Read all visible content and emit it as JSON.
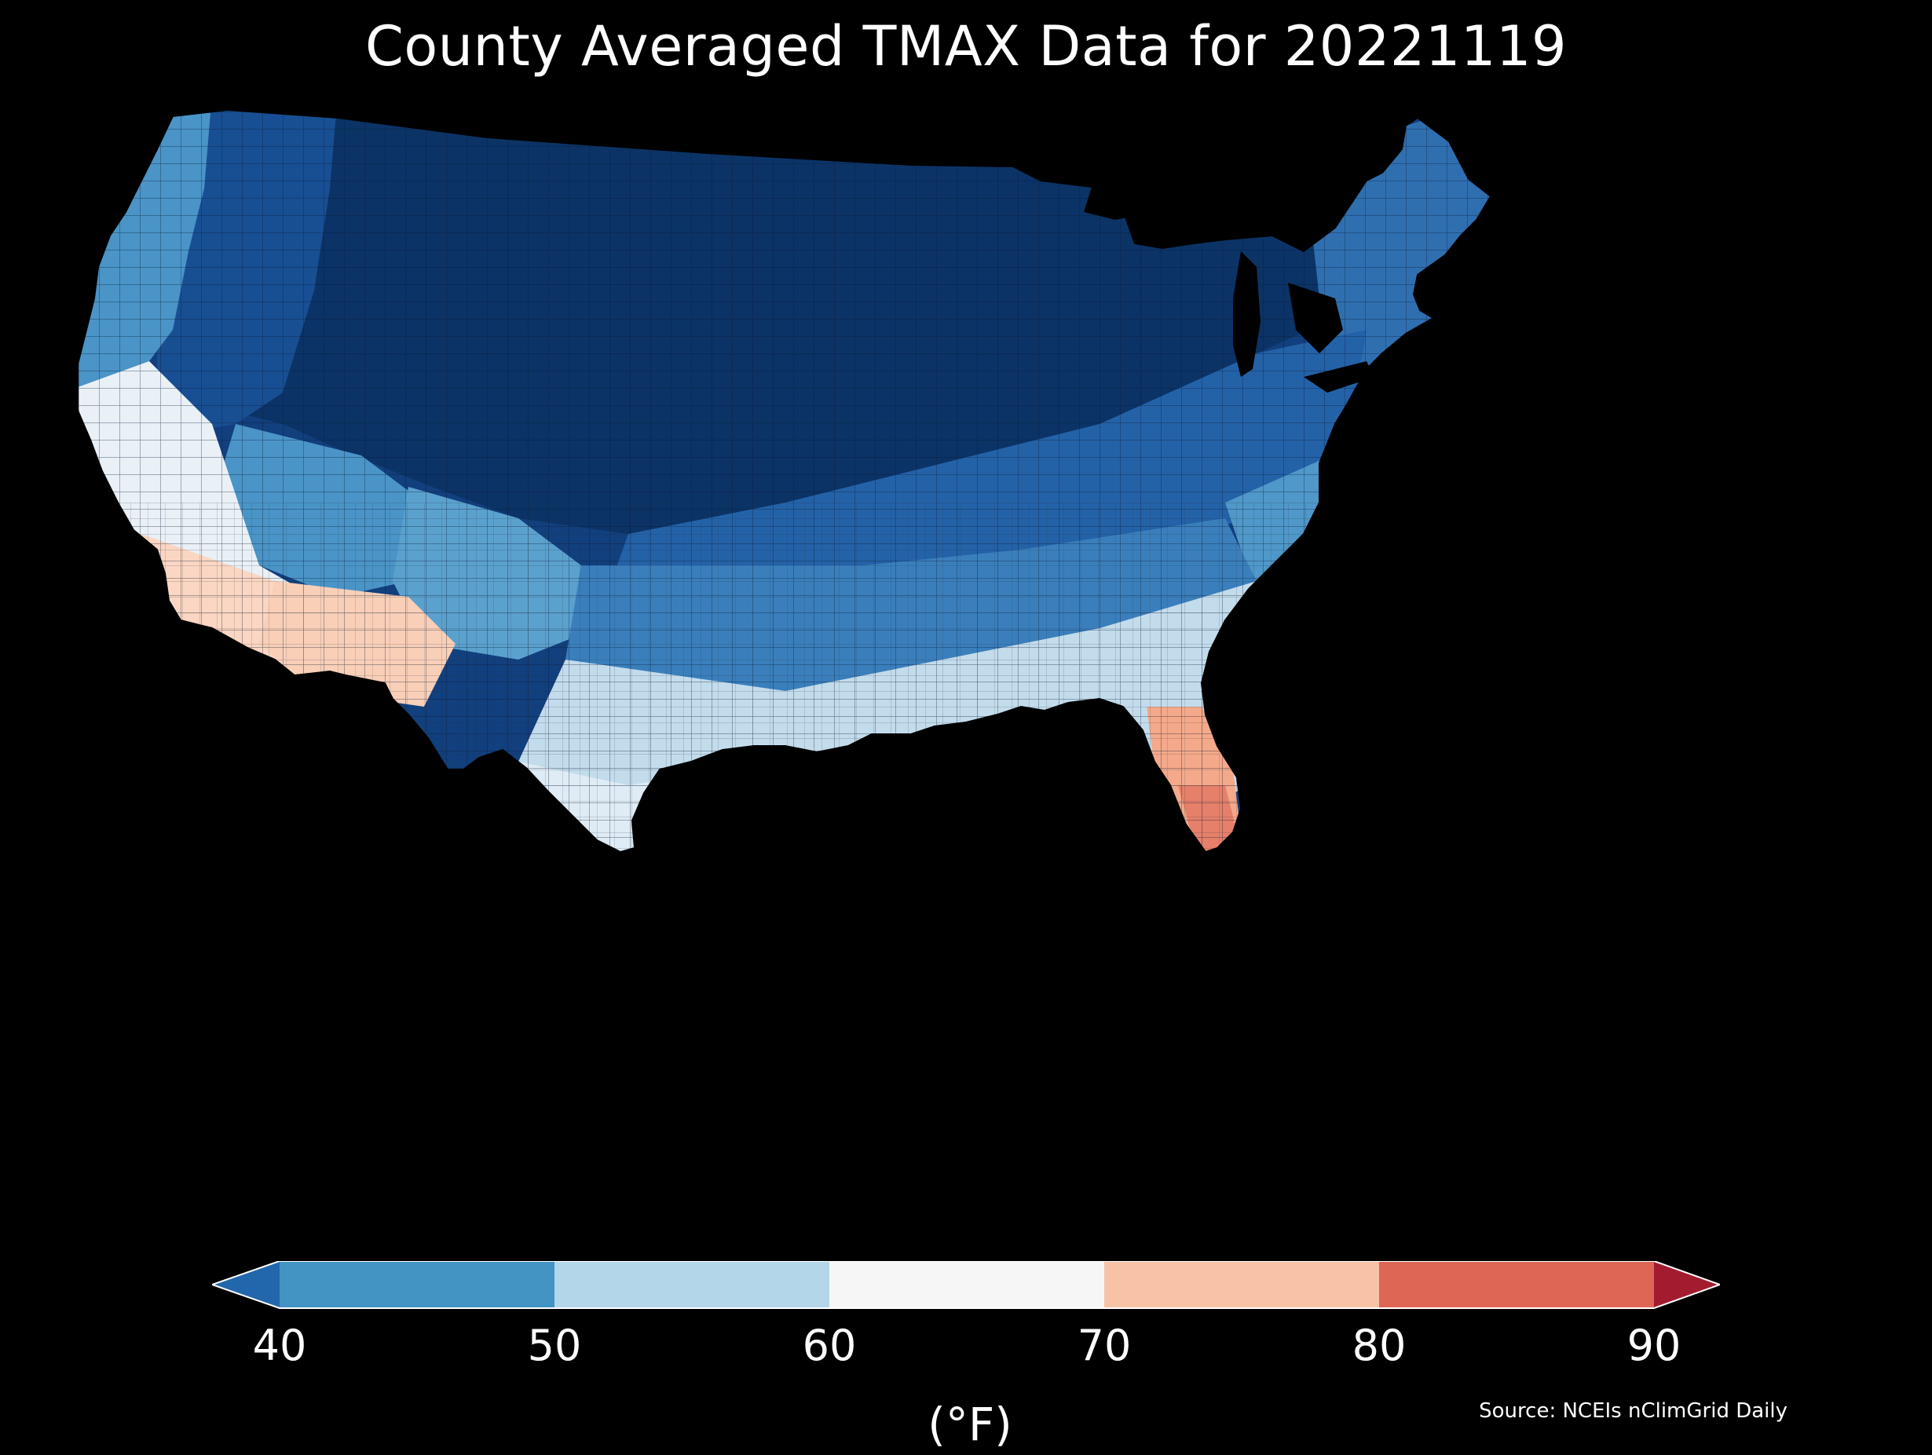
{
  "title": "County Averaged TMAX Data for 20221119",
  "map": {
    "region": "Contiguous United States",
    "background_color": "#000000",
    "features": [
      {
        "name": "region-northwest-coast",
        "band": "40-50",
        "color": "#4a94c7"
      },
      {
        "name": "region-northern-rockies",
        "band": "below-40",
        "color": "#184f93"
      },
      {
        "name": "region-northern-plains",
        "band": "below-40",
        "color": "#0b3366"
      },
      {
        "name": "region-great-lakes-northeast",
        "band": "below-40",
        "color": "#123f7d"
      },
      {
        "name": "region-new-england",
        "band": "40-50",
        "color": "#2f6fb0"
      },
      {
        "name": "region-mid-atlantic",
        "band": "40-50",
        "color": "#4f98c9"
      },
      {
        "name": "region-ohio-valley",
        "band": "below-40",
        "color": "#2462a8"
      },
      {
        "name": "region-great-basin",
        "band": "40-50",
        "color": "#4a94c7"
      },
      {
        "name": "region-southwest-colorado",
        "band": "40-50",
        "color": "#5ba1ce"
      },
      {
        "name": "region-southern-plains",
        "band": "40-50",
        "color": "#3a7fbc"
      },
      {
        "name": "region-southeast",
        "band": "50-60",
        "color": "#c3dcec"
      },
      {
        "name": "region-gulf-coast",
        "band": "60-70",
        "color": "#e0ecf5"
      },
      {
        "name": "region-california-coast",
        "band": "60-70",
        "color": "#e9f1f7"
      },
      {
        "name": "region-southern-california",
        "band": "70-80",
        "color": "#fbd6c2"
      },
      {
        "name": "region-southern-arizona",
        "band": "70-80",
        "color": "#f9cfb8"
      },
      {
        "name": "region-florida",
        "band": "70-80",
        "color": "#f4a98a"
      },
      {
        "name": "region-south-florida",
        "band": "80-90",
        "color": "#e6806a"
      }
    ]
  },
  "colorbar": {
    "ticks": [
      "40",
      "50",
      "60",
      "70",
      "80",
      "90"
    ],
    "segments": [
      {
        "from": 40,
        "to": 50,
        "color": "#4393c3"
      },
      {
        "from": 50,
        "to": 60,
        "color": "#b3d6e9"
      },
      {
        "from": 60,
        "to": 70,
        "color": "#f6f6f6"
      },
      {
        "from": 70,
        "to": 80,
        "color": "#f8c2a6"
      },
      {
        "from": 80,
        "to": 90,
        "color": "#dd6655"
      }
    ],
    "under_color": "#2267ac",
    "over_color": "#a21b2f",
    "extend": "both",
    "unit": "(°F)"
  },
  "source": "Source: NCEIs nClimGrid Daily"
}
